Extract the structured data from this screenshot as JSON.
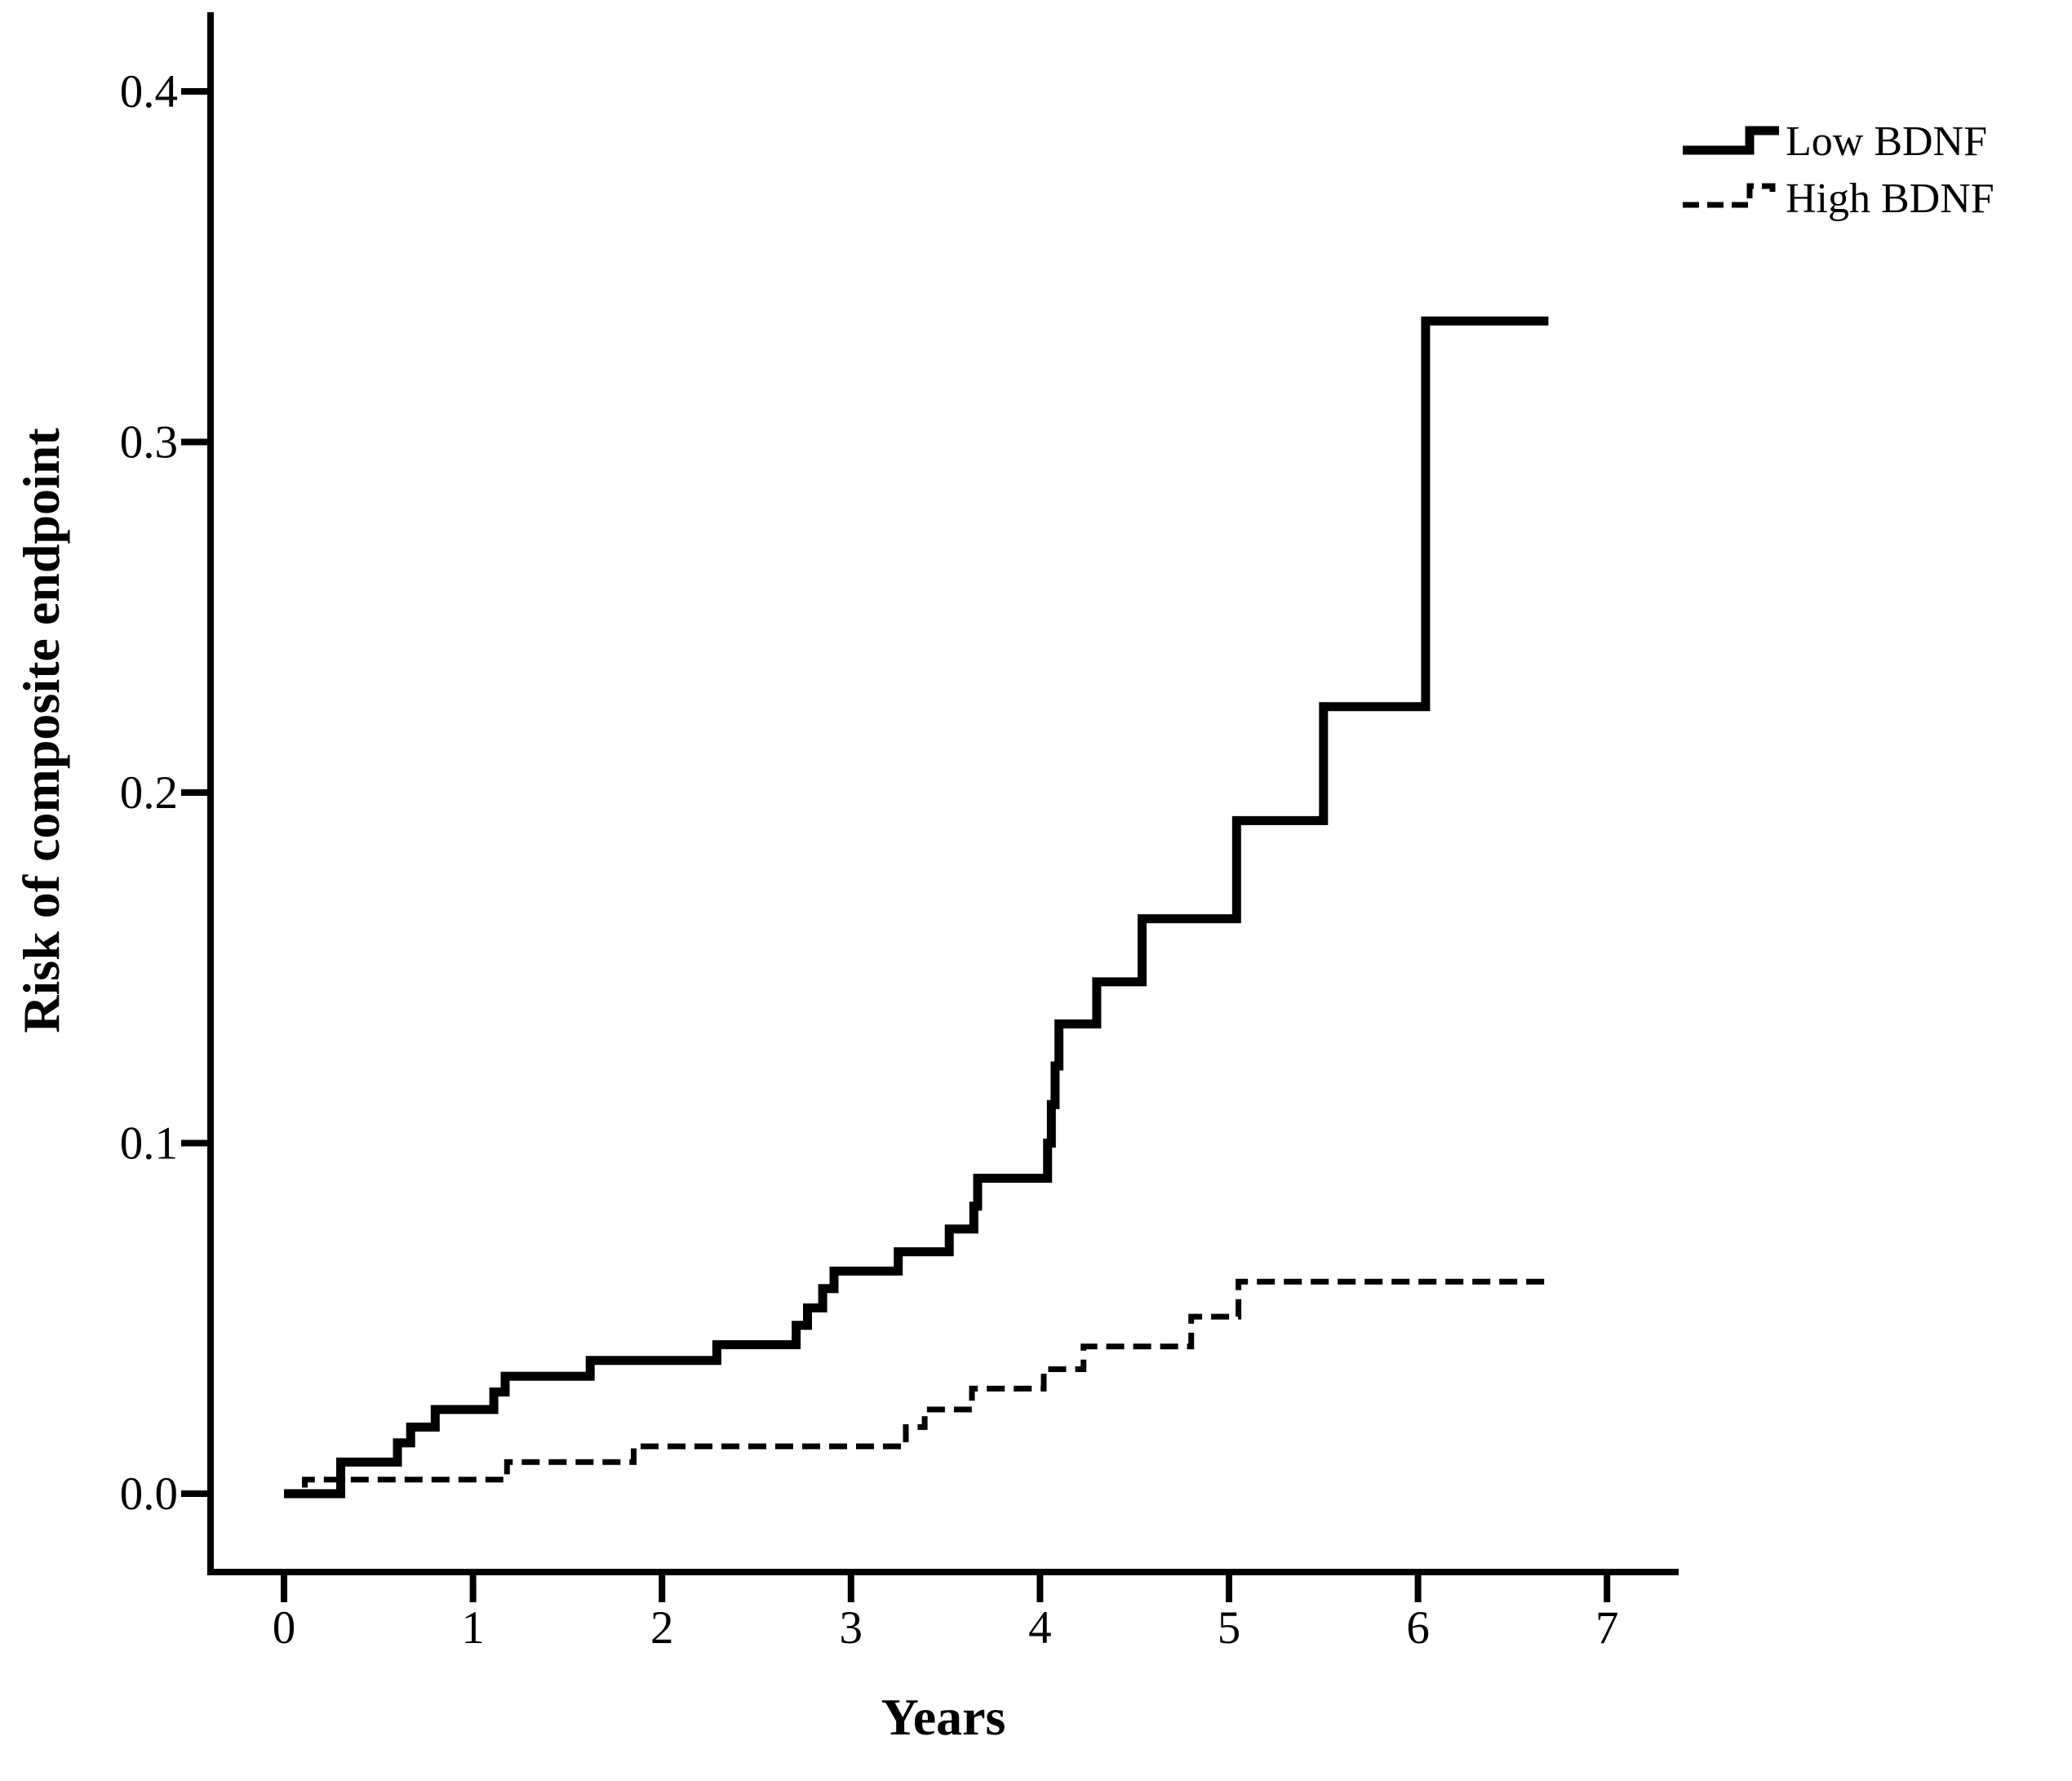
{
  "figure": {
    "background_color": "#ffffff",
    "ink_color": "#000000"
  },
  "chart_data": {
    "type": "line",
    "subtype": "step-cumulative-incidence",
    "title": "",
    "xlabel": "Years",
    "ylabel": "Risk of composite endpoint",
    "xlim": [
      0,
      7.4
    ],
    "ylim": [
      0,
      0.42
    ],
    "grid": false,
    "legend_position": "top-right",
    "x_ticks": [
      0,
      1,
      2,
      3,
      4,
      5,
      6,
      7
    ],
    "x_tick_labels": [
      "0",
      "1",
      "2",
      "3",
      "4",
      "5",
      "6",
      "7"
    ],
    "y_ticks": [
      0.0,
      0.1,
      0.2,
      0.3,
      0.4
    ],
    "y_tick_labels": [
      "0.0",
      "0.1",
      "0.2",
      "0.3",
      "0.4"
    ],
    "series": [
      {
        "name": "Low BDNF",
        "line_style": "solid",
        "color": "#000000",
        "steps": [
          [
            0.0,
            0.0
          ],
          [
            0.3,
            0.009
          ],
          [
            0.6,
            0.0145
          ],
          [
            0.67,
            0.019
          ],
          [
            0.8,
            0.024
          ],
          [
            1.11,
            0.029
          ],
          [
            1.17,
            0.0335
          ],
          [
            1.62,
            0.038
          ],
          [
            2.29,
            0.0425
          ],
          [
            2.71,
            0.048
          ],
          [
            2.77,
            0.053
          ],
          [
            2.85,
            0.0585
          ],
          [
            2.91,
            0.0635
          ],
          [
            3.25,
            0.069
          ],
          [
            3.52,
            0.0755
          ],
          [
            3.65,
            0.082
          ],
          [
            3.67,
            0.09
          ],
          [
            4.04,
            0.1
          ],
          [
            4.06,
            0.111
          ],
          [
            4.08,
            0.122
          ],
          [
            4.1,
            0.134
          ],
          [
            4.3,
            0.146
          ],
          [
            4.54,
            0.164
          ],
          [
            5.04,
            0.192
          ],
          [
            5.5,
            0.2245
          ],
          [
            6.04,
            0.3345
          ]
        ],
        "end_x": 6.69
      },
      {
        "name": "High BDNF",
        "line_style": "dashed",
        "color": "#000000",
        "steps": [
          [
            0.0,
            0.0
          ],
          [
            0.11,
            0.004
          ],
          [
            1.18,
            0.009
          ],
          [
            1.85,
            0.0135
          ],
          [
            3.29,
            0.019
          ],
          [
            3.39,
            0.024
          ],
          [
            3.64,
            0.03
          ],
          [
            4.02,
            0.0355
          ],
          [
            4.23,
            0.042
          ],
          [
            4.8,
            0.0505
          ],
          [
            5.05,
            0.0605
          ]
        ],
        "end_x": 6.7
      }
    ]
  },
  "legend": {
    "items": [
      {
        "label": "Low BDNF"
      },
      {
        "label": "High BDNF"
      }
    ]
  }
}
